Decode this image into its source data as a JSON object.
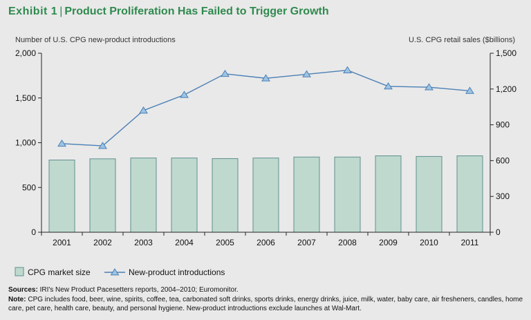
{
  "header": {
    "exhibit_label": "Exhibit 1",
    "title": "Product Proliferation Has Failed to Trigger Growth"
  },
  "chart_data": {
    "type": "bar+line",
    "categories": [
      "2001",
      "2002",
      "2003",
      "2004",
      "2005",
      "2006",
      "2007",
      "2008",
      "2009",
      "2010",
      "2011"
    ],
    "series": [
      {
        "name": "CPG market size",
        "type": "bar",
        "axis": "right",
        "values": [
          605,
          615,
          622,
          622,
          617,
          622,
          630,
          630,
          640,
          635,
          640
        ]
      },
      {
        "name": "New-product introductions",
        "type": "line",
        "axis": "left",
        "values": [
          990,
          965,
          1360,
          1535,
          1770,
          1720,
          1765,
          1810,
          1630,
          1620,
          1580
        ]
      }
    ],
    "left_axis": {
      "label": "Number of U.S. CPG new-product introductions",
      "ylim": [
        0,
        2000
      ],
      "ticks": [
        0,
        500,
        1000,
        1500,
        2000
      ],
      "tick_labels": [
        "0",
        "500",
        "1,000",
        "1,500",
        "2,000"
      ]
    },
    "right_axis": {
      "label": "U.S. CPG retail sales ($billions)",
      "ylim": [
        0,
        1500
      ],
      "ticks": [
        0,
        300,
        600,
        900,
        1200,
        1500
      ],
      "tick_labels": [
        "0",
        "300",
        "600",
        "900",
        "1,200",
        "1,500"
      ]
    },
    "legend": [
      "CPG market size",
      "New-product introductions"
    ],
    "colors": {
      "bar_fill": "#bfd9cf",
      "bar_stroke": "#5f8e8c",
      "line": "#4a7fb4",
      "marker_fill": "#9cc4e4",
      "axis": "#222222"
    }
  },
  "footer": {
    "sources_label": "Sources:",
    "sources_text": "IRI's New Product Pacesetters reports, 2004–2010; Euromonitor.",
    "note_label": "Note:",
    "note_text": "CPG includes food, beer, wine, spirits, coffee, tea, carbonated soft drinks, sports drinks, energy drinks, juice, milk, water, baby care, air fresheners, candles, home care, pet care, health care, beauty, and personal hygiene. New-product introductions exclude launches at Wal-Mart."
  }
}
